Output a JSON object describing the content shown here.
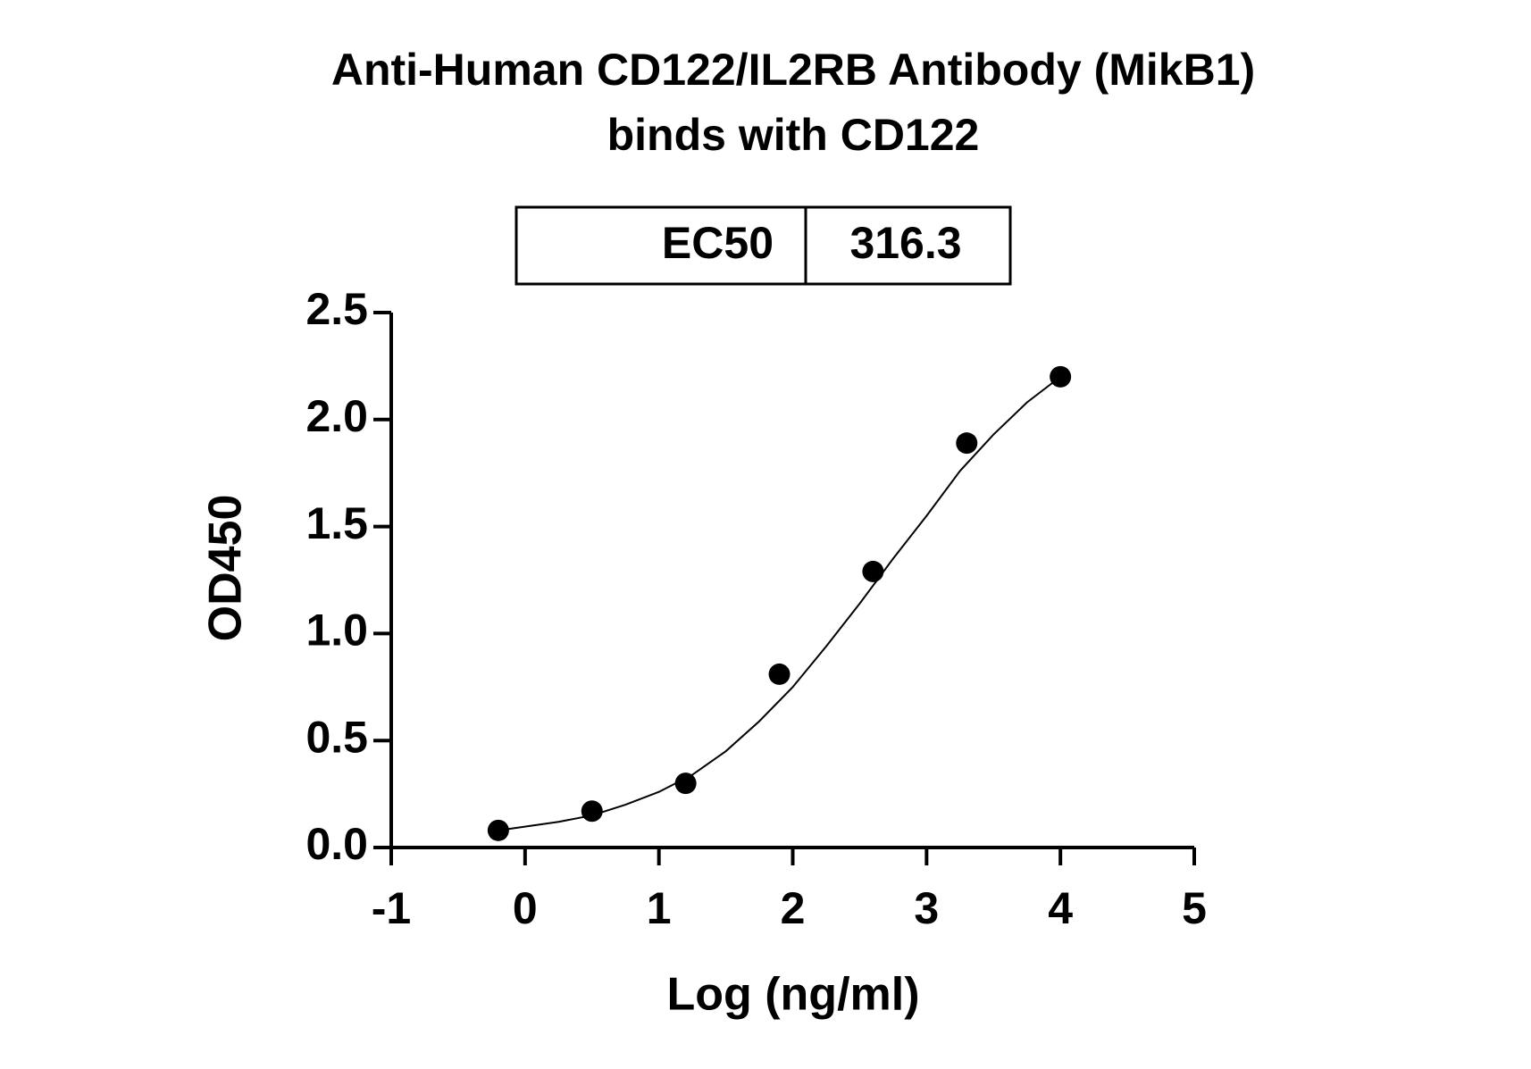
{
  "chart_data": {
    "type": "scatter",
    "title_lines": [
      "Anti-Human CD122/IL2RB Antibody (MikB1)",
      "binds with CD122"
    ],
    "ec50_table": {
      "label": "EC50",
      "value": 316.3
    },
    "x_label": "Log (ng/ml)",
    "y_label": "OD450",
    "x": [
      -0.2,
      0.5,
      1.2,
      1.9,
      2.6,
      3.3,
      4.0
    ],
    "values": [
      0.08,
      0.17,
      0.3,
      0.81,
      1.29,
      1.89,
      2.2
    ],
    "color": "#000000",
    "curve": {
      "x": [
        -0.2,
        0.25,
        0.5,
        0.75,
        1.0,
        1.25,
        1.5,
        1.75,
        2.0,
        2.25,
        2.5,
        2.75,
        3.0,
        3.25,
        3.5,
        3.75,
        4.0
      ],
      "values": [
        0.08,
        0.12,
        0.15,
        0.2,
        0.26,
        0.34,
        0.45,
        0.59,
        0.75,
        0.94,
        1.14,
        1.35,
        1.55,
        1.76,
        1.93,
        2.08,
        2.2
      ]
    },
    "xlim": [
      -1,
      5
    ],
    "xticks": [
      -1,
      0,
      1,
      2,
      3,
      4,
      5
    ],
    "ylim": [
      0,
      2.5
    ],
    "yticks": [
      {
        "value": 0,
        "label": "0.0"
      },
      0.5,
      {
        "value": 1,
        "label": "1.0"
      },
      1.5,
      {
        "value": 2,
        "label": "2.0"
      },
      2.5
    ],
    "grid": false
  }
}
